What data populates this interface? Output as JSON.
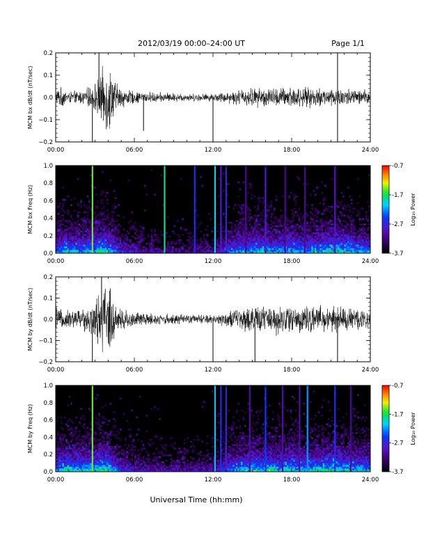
{
  "header": {
    "title": "2012/03/19   00:00–24:00 UT",
    "page": "Page 1/1"
  },
  "footer": {
    "xlabel": "Universal Time (hh:mm)"
  },
  "colorbar": {
    "ticks": [
      "-0.7",
      "-1.7",
      "-2.7",
      "-3.7"
    ],
    "label": "Log₁₀ Power"
  },
  "chart_data": [
    {
      "type": "line",
      "ylabel": "MCM bx dB/dt (nT/sec)",
      "xlim": [
        "00:00",
        "24:00"
      ],
      "x_ticks": [
        "00:00",
        "06:00",
        "12:00",
        "18:00",
        "24:00"
      ],
      "ylim": [
        -0.2,
        0.2
      ],
      "y_ticks": [
        "0.2",
        "0.1",
        "0.0",
        "−0.1",
        "−0.2"
      ],
      "envelope": {
        "hours": [
          0,
          0.5,
          1,
          2,
          2.8,
          3.3,
          3.7,
          4.0,
          4.3,
          4.8,
          6,
          8,
          10,
          12,
          13,
          14,
          15,
          16,
          17,
          18,
          19,
          20,
          21,
          22,
          23,
          24
        ],
        "amplitude": [
          0.04,
          0.05,
          0.03,
          0.035,
          0.06,
          0.1,
          0.16,
          0.2,
          0.12,
          0.06,
          0.03,
          0.025,
          0.02,
          0.02,
          0.03,
          0.04,
          0.05,
          0.05,
          0.05,
          0.06,
          0.05,
          0.05,
          0.05,
          0.05,
          0.04,
          0.04
        ]
      },
      "spikes": [
        {
          "hour": 2.8,
          "value": -0.2
        },
        {
          "hour": 6.7,
          "value": -0.15
        },
        {
          "hour": 12.0,
          "value": -0.2
        },
        {
          "hour": 21.5,
          "value": -0.22
        },
        {
          "hour": 3.3,
          "value": 0.2
        },
        {
          "hour": 21.5,
          "value": 0.2
        }
      ]
    },
    {
      "type": "heatmap",
      "ylabel": "MCM bx Freq (Hz)",
      "xlim": [
        "00:00",
        "24:00"
      ],
      "x_ticks": [
        "00:00",
        "06:00",
        "12:00",
        "18:00",
        "24:00"
      ],
      "ylim": [
        0,
        1.0
      ],
      "y_ticks": [
        "1.0",
        "0.8",
        "0.6",
        "0.4",
        "0.2",
        "0.0"
      ],
      "zlim": [
        -3.7,
        -0.7
      ],
      "activity": {
        "hours": [
          0,
          1,
          2,
          3,
          3.5,
          4,
          5,
          6,
          8,
          10,
          12,
          13,
          14,
          15,
          16,
          17,
          18,
          19,
          20,
          21,
          22,
          23,
          24
        ],
        "level": [
          0.7,
          0.8,
          0.75,
          0.8,
          0.9,
          0.85,
          0.5,
          0.4,
          0.3,
          0.3,
          0.35,
          0.6,
          0.75,
          0.8,
          0.8,
          0.75,
          0.8,
          0.75,
          0.8,
          0.85,
          0.85,
          0.75,
          0.7
        ]
      },
      "broadband_lines": [
        {
          "hour": 2.8,
          "z": -1.5
        },
        {
          "hour": 8.3,
          "z": -1.8
        },
        {
          "hour": 10.6,
          "z": -2.6
        },
        {
          "hour": 12.15,
          "z": -2.0
        },
        {
          "hour": 12.6,
          "z": -2.8
        },
        {
          "hour": 13.0,
          "z": -2.7
        },
        {
          "hour": 14.5,
          "z": -3.1
        },
        {
          "hour": 16.0,
          "z": -2.8
        },
        {
          "hour": 17.5,
          "z": -3.1
        },
        {
          "hour": 19.0,
          "z": -3.1
        },
        {
          "hour": 21.3,
          "z": -2.9
        }
      ]
    },
    {
      "type": "line",
      "ylabel": "MCM by dB/dt (nT/sec)",
      "xlim": [
        "00:00",
        "24:00"
      ],
      "x_ticks": [
        "00:00",
        "06:00",
        "12:00",
        "18:00",
        "24:00"
      ],
      "ylim": [
        -0.2,
        0.2
      ],
      "y_ticks": [
        "0.2",
        "0.1",
        "0.0",
        "−0.1",
        "−0.2"
      ],
      "envelope": {
        "hours": [
          0,
          0.3,
          1,
          2,
          2.8,
          3.3,
          3.6,
          4.0,
          4.3,
          4.8,
          6,
          8,
          10,
          12,
          13,
          14,
          15,
          16,
          17,
          18,
          19,
          20,
          21,
          22,
          23,
          24
        ],
        "amplitude": [
          0.09,
          0.05,
          0.05,
          0.06,
          0.08,
          0.15,
          0.2,
          0.2,
          0.14,
          0.07,
          0.04,
          0.03,
          0.025,
          0.025,
          0.04,
          0.06,
          0.07,
          0.07,
          0.08,
          0.08,
          0.07,
          0.07,
          0.07,
          0.07,
          0.06,
          0.05
        ]
      },
      "spikes": [
        {
          "hour": 2.8,
          "value": -0.2
        },
        {
          "hour": 12.0,
          "value": -0.2
        },
        {
          "hour": 15.2,
          "value": -0.2
        },
        {
          "hour": 21.5,
          "value": -0.2
        },
        {
          "hour": 3.5,
          "value": 0.2
        }
      ]
    },
    {
      "type": "heatmap",
      "ylabel": "MCM by Freq (Hz)",
      "xlim": [
        "00:00",
        "24:00"
      ],
      "x_ticks": [
        "00:00",
        "06:00",
        "12:00",
        "18:00",
        "24:00"
      ],
      "ylim": [
        0,
        1.0
      ],
      "y_ticks": [
        "1.0",
        "0.8",
        "0.6",
        "0.4",
        "0.2",
        "0.0"
      ],
      "zlim": [
        -3.7,
        -0.7
      ],
      "activity": {
        "hours": [
          0,
          1,
          2,
          3,
          3.5,
          4,
          5,
          6,
          8,
          10,
          12,
          13,
          14,
          15,
          16,
          17,
          18,
          19,
          20,
          21,
          22,
          23,
          24
        ],
        "level": [
          0.75,
          0.85,
          0.8,
          0.85,
          0.95,
          0.9,
          0.55,
          0.45,
          0.35,
          0.35,
          0.4,
          0.65,
          0.8,
          0.85,
          0.85,
          0.8,
          0.85,
          0.8,
          0.85,
          0.9,
          0.85,
          0.8,
          0.75
        ]
      },
      "broadband_lines": [
        {
          "hour": 2.8,
          "z": -1.5
        },
        {
          "hour": 12.15,
          "z": -2.1
        },
        {
          "hour": 12.6,
          "z": -2.6
        },
        {
          "hour": 13.0,
          "z": -2.7
        },
        {
          "hour": 14.8,
          "z": -3.0
        },
        {
          "hour": 16.0,
          "z": -2.5
        },
        {
          "hour": 17.3,
          "z": -3.0
        },
        {
          "hour": 18.6,
          "z": -3.0
        },
        {
          "hour": 19.2,
          "z": -2.2
        },
        {
          "hour": 21.3,
          "z": -2.6
        },
        {
          "hour": 22.5,
          "z": -3.1
        }
      ]
    }
  ]
}
